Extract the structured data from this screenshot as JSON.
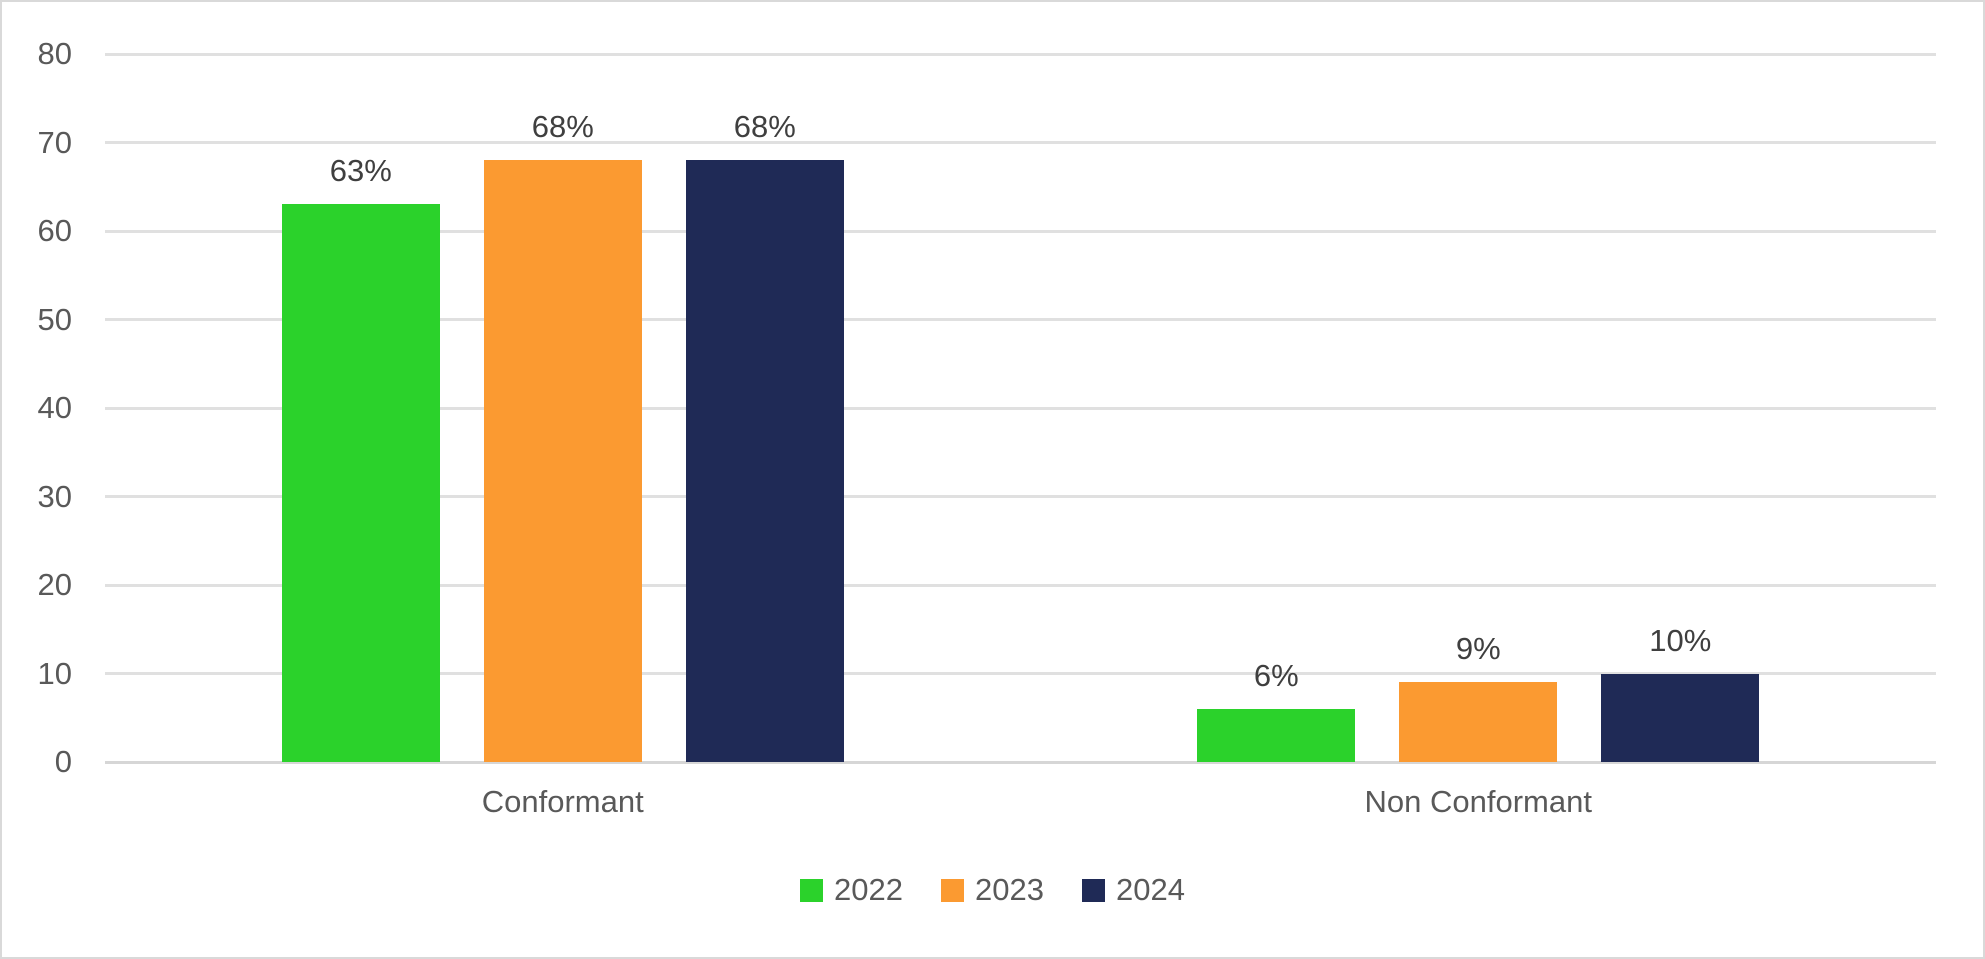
{
  "chart_data": {
    "type": "bar",
    "title": "",
    "categories": [
      "Conformant",
      "Non Conformant"
    ],
    "series": [
      {
        "name": "2022",
        "color": "#2bd22b",
        "values": [
          63,
          6
        ],
        "labels": [
          "63%",
          "6%"
        ]
      },
      {
        "name": "2023",
        "color": "#fb9a31",
        "values": [
          68,
          9
        ],
        "labels": [
          "68%",
          "9%"
        ]
      },
      {
        "name": "2024",
        "color": "#1f2a56",
        "values": [
          68,
          10
        ],
        "labels": [
          "68%",
          "10%"
        ]
      }
    ],
    "y_axis": {
      "min": 0,
      "max": 80,
      "step": 10,
      "tick_labels": [
        "0",
        "10",
        "20",
        "30",
        "40",
        "50",
        "60",
        "70",
        "80"
      ]
    },
    "xlabel": "",
    "ylabel": "",
    "ylim": [
      0,
      80
    ],
    "grid": true,
    "legend": {
      "position": "bottom",
      "entries": [
        "2022",
        "2023",
        "2024"
      ]
    },
    "colors": {
      "gridline": "#e0e0e0",
      "axis_line": "#d6d6d6",
      "frame_border": "#d9d9d9",
      "axis_text": "#595959",
      "data_label_text": "#3f3f3f",
      "background": "#ffffff"
    }
  }
}
